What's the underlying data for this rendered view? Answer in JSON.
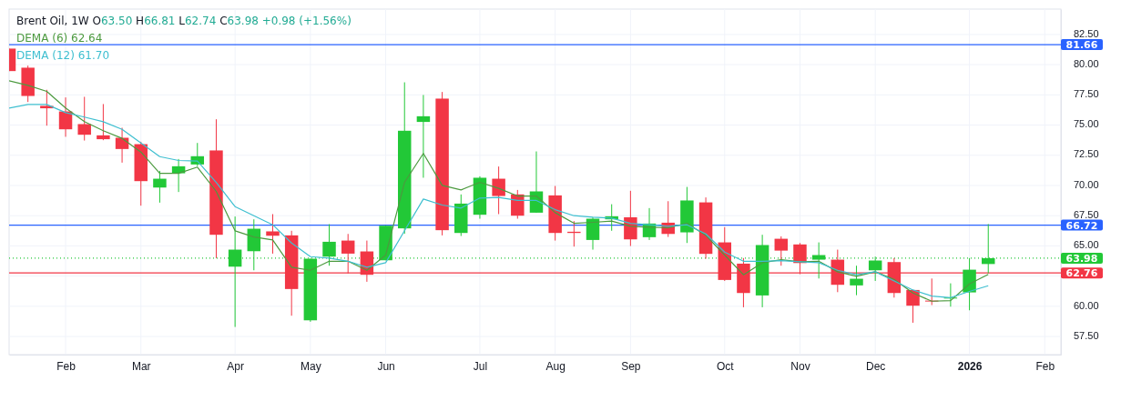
{
  "chart_data": {
    "type": "candlestick",
    "title": "Brent Oil, 1W",
    "subtitle": "O63.50 H66.81 L62.74 C63.98 +0.98 (+1.56%)",
    "x": [
      "2025-01-13",
      "2025-01-20",
      "2025-01-27",
      "2025-02-03",
      "2025-02-10",
      "2025-02-17",
      "2025-02-24",
      "2025-03-03",
      "2025-03-10",
      "2025-03-17",
      "2025-03-24",
      "2025-03-31",
      "2025-04-07",
      "2025-04-14",
      "2025-04-21",
      "2025-04-28",
      "2025-05-05",
      "2025-05-12",
      "2025-05-19",
      "2025-05-26",
      "2025-06-02",
      "2025-06-09",
      "2025-06-16",
      "2025-06-23",
      "2025-06-30",
      "2025-07-07",
      "2025-07-14",
      "2025-07-21",
      "2025-07-28",
      "2025-08-04",
      "2025-08-11",
      "2025-08-18",
      "2025-08-25",
      "2025-09-01",
      "2025-09-08",
      "2025-09-15",
      "2025-09-22",
      "2025-09-29",
      "2025-10-06",
      "2025-10-13",
      "2025-10-20",
      "2025-10-27",
      "2025-11-03",
      "2025-11-10",
      "2025-11-17",
      "2025-11-24",
      "2025-12-01",
      "2025-12-08",
      "2025-12-15",
      "2025-12-22",
      "2025-12-29",
      "2026-01-05",
      "2026-01-12"
    ],
    "ohlc": [
      [
        81.33,
        81.33,
        79.47,
        79.47
      ],
      [
        79.75,
        79.92,
        76.91,
        77.41
      ],
      [
        76.59,
        77.92,
        74.95,
        76.39
      ],
      [
        76.13,
        77.29,
        74.03,
        74.65
      ],
      [
        75.08,
        77.34,
        73.72,
        74.2
      ],
      [
        74.15,
        76.74,
        73.75,
        73.83
      ],
      [
        73.95,
        74.78,
        71.89,
        73.02
      ],
      [
        73.42,
        73.62,
        68.33,
        70.36
      ],
      [
        69.83,
        71.21,
        68.58,
        70.56
      ],
      [
        71.01,
        72.19,
        69.46,
        71.59
      ],
      [
        71.74,
        73.52,
        71.6,
        72.42
      ],
      [
        72.9,
        75.48,
        63.99,
        65.92
      ],
      [
        63.28,
        67.43,
        58.29,
        64.69
      ],
      [
        64.56,
        67.2,
        62.98,
        66.42
      ],
      [
        66.2,
        67.63,
        64.36,
        65.84
      ],
      [
        65.87,
        66.25,
        59.22,
        61.43
      ],
      [
        58.84,
        63.94,
        58.72,
        63.94
      ],
      [
        64.11,
        66.8,
        63.36,
        65.34
      ],
      [
        65.44,
        65.99,
        62.73,
        64.36
      ],
      [
        64.54,
        65.44,
        62.03,
        62.61
      ],
      [
        63.81,
        66.67,
        63.81,
        66.67
      ],
      [
        66.45,
        78.54,
        66.0,
        74.53
      ],
      [
        75.26,
        77.49,
        70.64,
        75.73
      ],
      [
        77.19,
        77.74,
        65.87,
        66.3
      ],
      [
        66.07,
        69.26,
        65.82,
        68.5
      ],
      [
        67.58,
        70.76,
        67.25,
        70.64
      ],
      [
        70.56,
        71.57,
        67.63,
        69.13
      ],
      [
        69.26,
        69.63,
        67.25,
        67.5
      ],
      [
        67.75,
        72.82,
        67.75,
        69.51
      ],
      [
        69.18,
        69.96,
        65.44,
        66.07
      ],
      [
        66.17,
        67.05,
        64.94,
        66.07
      ],
      [
        65.49,
        67.37,
        64.69,
        67.25
      ],
      [
        67.2,
        68.45,
        66.25,
        67.45
      ],
      [
        67.37,
        69.56,
        64.99,
        65.54
      ],
      [
        65.72,
        68.13,
        65.49,
        66.85
      ],
      [
        66.92,
        68.7,
        65.74,
        65.99
      ],
      [
        66.12,
        69.88,
        65.24,
        68.76
      ],
      [
        68.6,
        69.01,
        63.94,
        64.34
      ],
      [
        65.29,
        66.55,
        62.1,
        62.18
      ],
      [
        63.53,
        63.99,
        59.92,
        61.1
      ],
      [
        60.9,
        65.92,
        59.92,
        65.07
      ],
      [
        65.59,
        65.79,
        63.36,
        64.61
      ],
      [
        65.12,
        65.24,
        62.66,
        63.58
      ],
      [
        63.86,
        65.29,
        62.3,
        64.24
      ],
      [
        63.86,
        64.69,
        61.17,
        61.78
      ],
      [
        61.73,
        63.36,
        60.92,
        62.28
      ],
      [
        62.98,
        64.11,
        62.1,
        63.79
      ],
      [
        63.66,
        63.99,
        60.72,
        61.1
      ],
      [
        61.35,
        61.35,
        58.64,
        60.05
      ],
      [
        60.47,
        62.3,
        60.1,
        60.4
      ],
      [
        60.65,
        61.9,
        59.97,
        60.72
      ],
      [
        61.15,
        63.99,
        59.67,
        63.03
      ],
      [
        63.5,
        66.81,
        62.74,
        63.98
      ]
    ],
    "colors": [
      "#f23645",
      "#f23645",
      "#f23645",
      "#f23645",
      "#f23645",
      "#f23645",
      "#f23645",
      "#f23645",
      "#22c837",
      "#22c837",
      "#22c837",
      "#f23645",
      "#22c837",
      "#22c837",
      "#f23645",
      "#f23645",
      "#22c837",
      "#22c837",
      "#f23645",
      "#f23645",
      "#22c837",
      "#22c837",
      "#22c837",
      "#f23645",
      "#22c837",
      "#22c837",
      "#f23645",
      "#f23645",
      "#22c837",
      "#f23645",
      "#f23645",
      "#22c837",
      "#22c837",
      "#f23645",
      "#22c837",
      "#f23645",
      "#22c837",
      "#f23645",
      "#f23645",
      "#f23645",
      "#22c837",
      "#f23645",
      "#f23645",
      "#22c837",
      "#f23645",
      "#22c837",
      "#22c837",
      "#f23645",
      "#f23645",
      "#f23645",
      "#22c837",
      "#22c837",
      "#22c837"
    ],
    "series": [
      {
        "name": "DEMA (6)",
        "type": "line",
        "color": "#4c9a3f",
        "values": [
          78.67,
          78.29,
          77.79,
          76.41,
          75.28,
          74.53,
          73.9,
          72.77,
          71.01,
          71.01,
          71.52,
          69.51,
          66.25,
          65.74,
          65.49,
          63.23,
          62.98,
          63.73,
          63.73,
          62.98,
          64.24,
          70.26,
          72.65,
          70.01,
          69.63,
          70.26,
          69.76,
          69.13,
          69.13,
          67.75,
          66.87,
          66.95,
          67.05,
          66.62,
          66.55,
          66.5,
          66.87,
          65.87,
          64.24,
          62.61,
          63.61,
          63.86,
          63.68,
          63.73,
          62.86,
          62.48,
          62.86,
          62.23,
          61.1,
          60.42,
          60.47,
          61.85,
          62.64
        ]
      },
      {
        "name": "DEMA (12)",
        "type": "line",
        "color": "#3ebfd0",
        "values": [
          76.41,
          76.71,
          76.71,
          76.03,
          75.66,
          75.28,
          74.65,
          73.52,
          72.39,
          72.07,
          72.02,
          70.26,
          68.25,
          67.5,
          66.75,
          65.24,
          64.11,
          63.99,
          63.73,
          63.23,
          63.61,
          66.25,
          68.88,
          68.38,
          68.13,
          68.96,
          69.01,
          68.76,
          68.76,
          68.0,
          67.5,
          67.37,
          67.3,
          66.87,
          66.75,
          66.62,
          66.75,
          65.99,
          64.49,
          63.73,
          63.73,
          63.78,
          63.68,
          63.61,
          62.98,
          62.61,
          62.86,
          62.1,
          61.35,
          60.85,
          60.72,
          61.23,
          61.7
        ]
      }
    ],
    "annotations": [
      "62.64",
      "61.70"
    ],
    "xlim": [
      "2025-01-13",
      "2026-02-08"
    ],
    "ylim": [
      56.0,
      84.6
    ],
    "xticks": [
      {
        "value": "2025-02-03",
        "label": "Feb"
      },
      {
        "value": "2025-03-03",
        "label": "Mar"
      },
      {
        "value": "2025-04-07",
        "label": "Apr"
      },
      {
        "value": "2025-05-05",
        "label": "May"
      },
      {
        "value": "2025-06-02",
        "label": "Jun"
      },
      {
        "value": "2025-07-07",
        "label": "Jul"
      },
      {
        "value": "2025-08-04",
        "label": "Aug"
      },
      {
        "value": "2025-09-01",
        "label": "Sep"
      },
      {
        "value": "2025-10-06",
        "label": "Oct"
      },
      {
        "value": "2025-11-03",
        "label": "Nov"
      },
      {
        "value": "2025-12-01",
        "label": "Dec"
      },
      {
        "value": "2026-01-05",
        "label": "2026"
      },
      {
        "value": "2026-02-02",
        "label": "Feb"
      }
    ],
    "yticks": [
      {
        "value": 57.5,
        "label": "57.50"
      },
      {
        "value": 60,
        "label": "60.00"
      },
      {
        "value": 62.5,
        "label": null
      },
      {
        "value": 65,
        "label": "65.00"
      },
      {
        "value": 67.5,
        "label": "67.50"
      },
      {
        "value": 70,
        "label": "70.00"
      },
      {
        "value": 72.5,
        "label": "72.50"
      },
      {
        "value": 75,
        "label": "75.00"
      },
      {
        "value": 77.5,
        "label": "77.50"
      },
      {
        "value": 80,
        "label": "80.00"
      },
      {
        "value": 82.5,
        "label": "82.50"
      }
    ],
    "grid": true,
    "legend": "top left",
    "ref_lines": [
      {
        "axis": "y",
        "value": 81.66,
        "label": "81.66",
        "color": "#2962ff",
        "line_style": "solid"
      },
      {
        "axis": "y",
        "value": 66.72,
        "label": "66.72",
        "color": "#2962ff",
        "line_style": "solid"
      },
      {
        "axis": "y",
        "value": 63.98,
        "label": "63.98",
        "color": "#22c837",
        "line_style": "dotted"
      },
      {
        "axis": "y",
        "value": 62.76,
        "label": "62.76",
        "color": "#f23645",
        "line_style": "solid"
      }
    ]
  }
}
